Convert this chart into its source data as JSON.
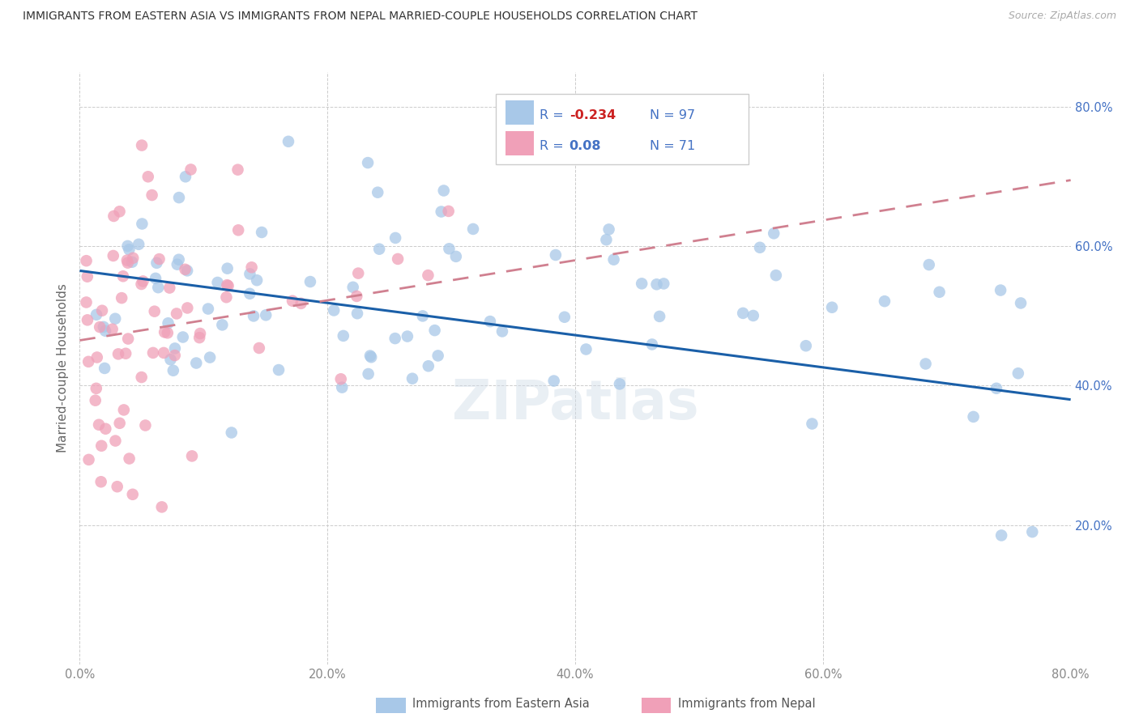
{
  "title": "IMMIGRANTS FROM EASTERN ASIA VS IMMIGRANTS FROM NEPAL MARRIED-COUPLE HOUSEHOLDS CORRELATION CHART",
  "source": "Source: ZipAtlas.com",
  "ylabel": "Married-couple Households",
  "xmin": 0.0,
  "xmax": 0.8,
  "ymin": 0.0,
  "ymax": 0.85,
  "yticks": [
    0.0,
    0.2,
    0.4,
    0.6,
    0.8
  ],
  "xticks": [
    0.0,
    0.2,
    0.4,
    0.6,
    0.8
  ],
  "eastern_asia_color": "#a8c8e8",
  "nepal_color": "#f0a0b8",
  "eastern_asia_R": -0.234,
  "eastern_asia_N": 97,
  "nepal_R": 0.08,
  "nepal_N": 71,
  "trendline_eastern_color": "#1a5fa8",
  "trendline_nepal_color": "#d08090",
  "watermark": "ZIPatlas",
  "legend_label_eastern": "Immigrants from Eastern Asia",
  "legend_label_nepal": "Immigrants from Nepal",
  "r_value_neg_color": "#cc2222",
  "r_value_pos_color": "#4472c4",
  "n_label_color": "#4472c4",
  "ytick_color": "#4472c4",
  "xtick_color": "#888888",
  "ea_intercept": 0.565,
  "ea_slope_val": -0.185,
  "np_intercept": 0.465,
  "np_slope_val": 0.23
}
